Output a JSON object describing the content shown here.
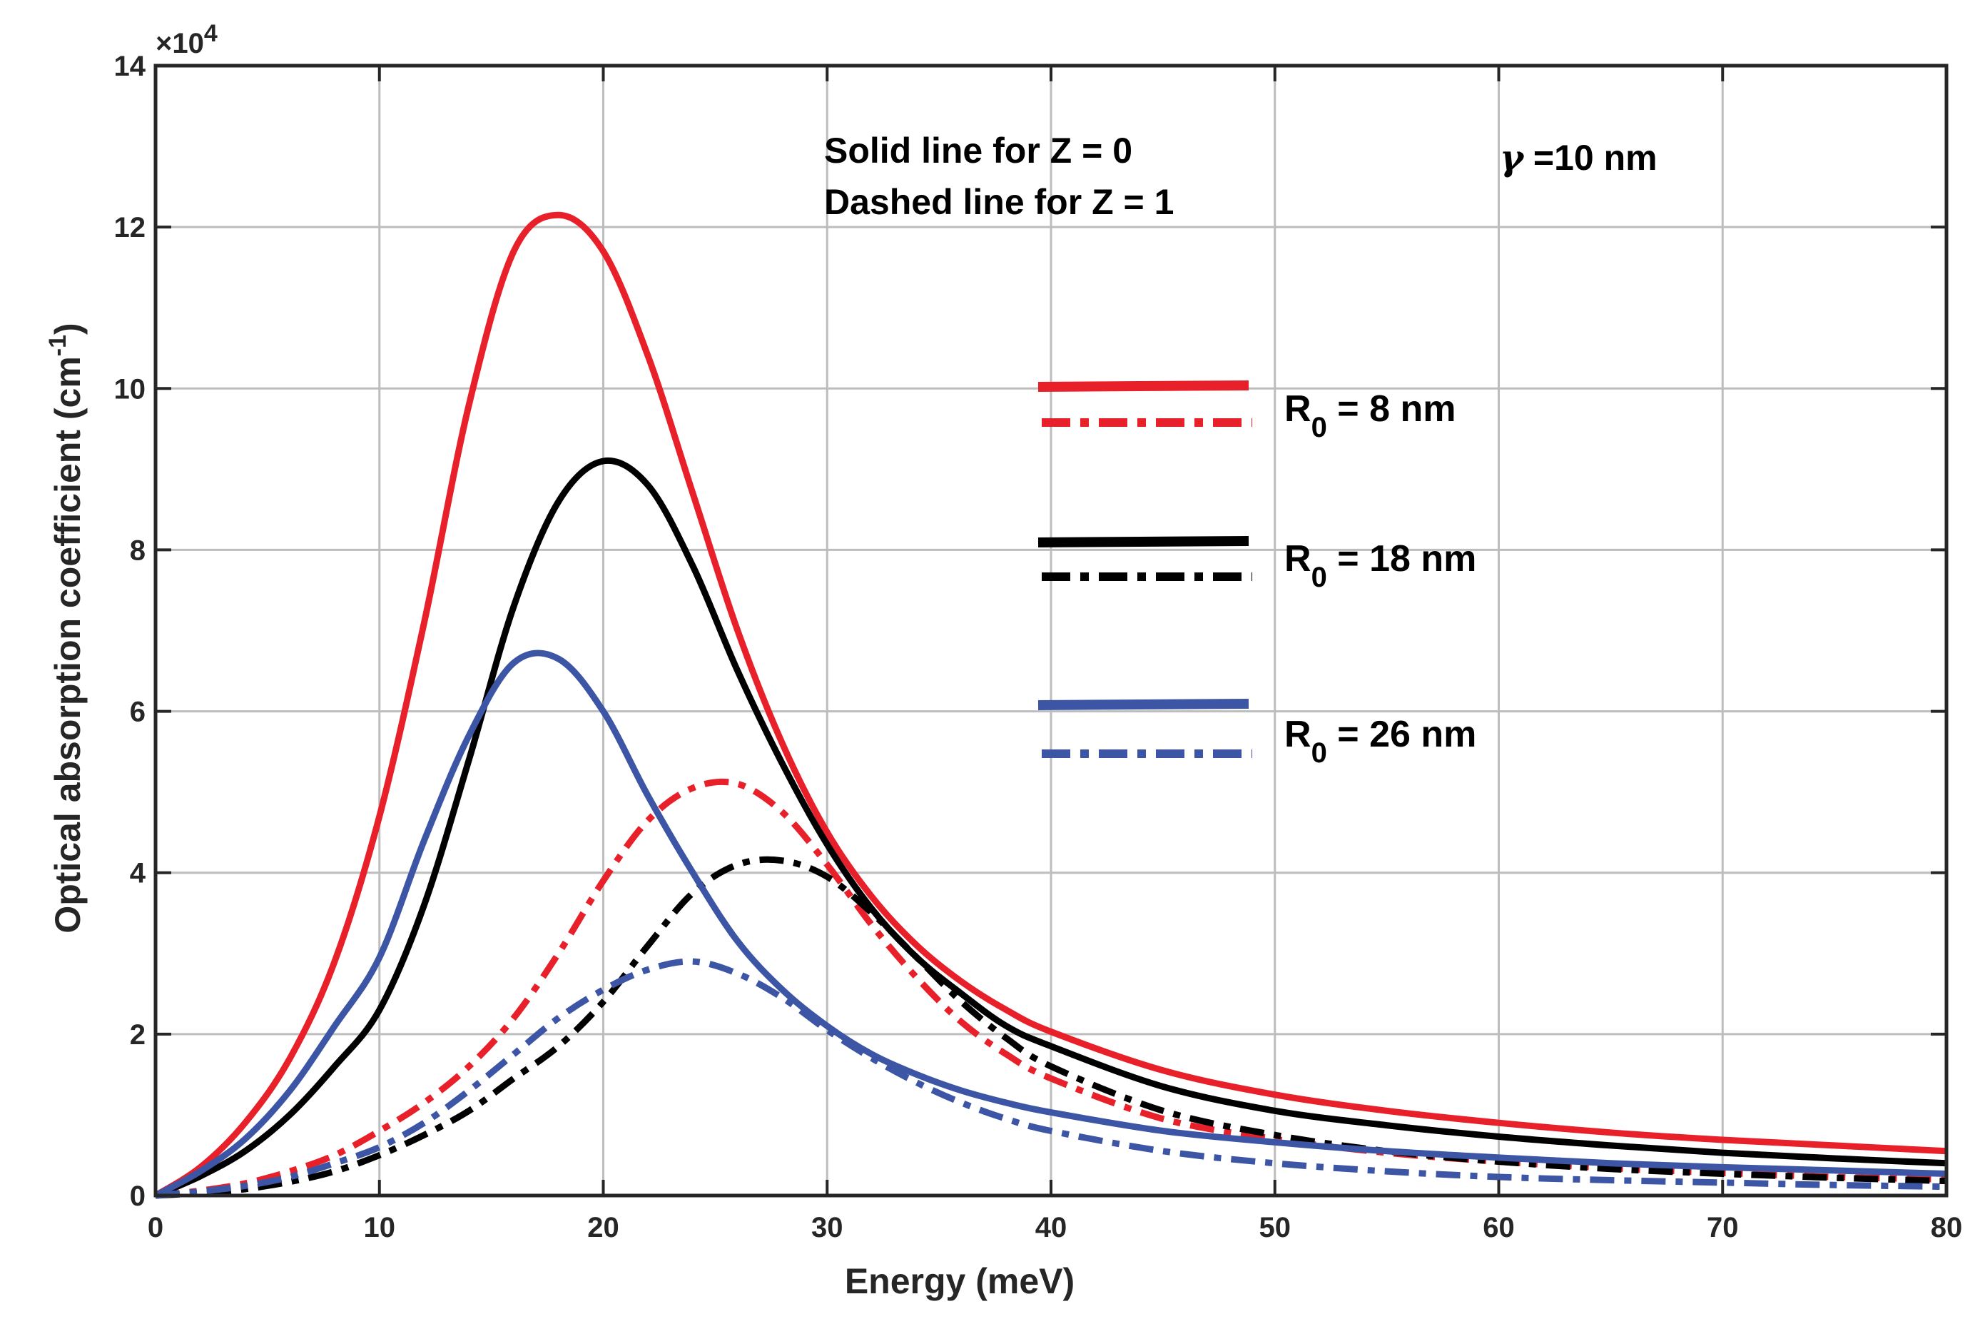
{
  "chart_data": {
    "type": "line",
    "title": "",
    "xlabel": "Energy (meV)",
    "ylabel": "Optical absorption coefficient (cm",
    "ylabel_sup": "-1",
    "ylabel_close": ")",
    "xlim": [
      0,
      80
    ],
    "ylim": [
      0,
      140000
    ],
    "grid": true,
    "x_ticks": [
      0,
      10,
      20,
      30,
      40,
      50,
      60,
      70,
      80
    ],
    "y_ticks": [
      0,
      2,
      4,
      6,
      8,
      10,
      12,
      14
    ],
    "y_multiplier_base": "×10",
    "y_multiplier_exp": "4",
    "annotations": {
      "line1": "Solid line for Z = 0",
      "line2": "Dashed line for Z = 1",
      "gamma_symbol": "γ",
      "gamma_value": " =10 nm"
    },
    "legend_groups": [
      {
        "label_prefix": "R",
        "label_sub": "0",
        "label_suffix": " = 8 nm",
        "color": "#e8202a"
      },
      {
        "label_prefix": "R",
        "label_sub": "0",
        "label_suffix": " = 18 nm",
        "color": "#000000"
      },
      {
        "label_prefix": "R",
        "label_sub": "0",
        "label_suffix": " = 26 nm",
        "color": "#3c55a5"
      }
    ],
    "x": [
      0,
      2,
      4,
      6,
      8,
      10,
      12,
      14,
      16,
      18,
      20,
      22,
      24,
      26,
      28,
      30,
      32,
      34,
      36,
      38,
      40,
      45,
      50,
      55,
      60,
      65,
      70,
      75,
      80
    ],
    "series": [
      {
        "name": "R0 = 8 nm, Z = 0",
        "color": "#e8202a",
        "style": "solid",
        "values": [
          0,
          3500,
          9000,
          17000,
          29000,
          47000,
          71000,
          98000,
          117000,
          121500,
          117000,
          104000,
          87000,
          70000,
          56000,
          45000,
          37000,
          31000,
          26500,
          23000,
          20300,
          15500,
          12500,
          10500,
          9000,
          7800,
          6900,
          6200,
          5500
        ]
      },
      {
        "name": "R0 = 8 nm, Z = 1",
        "color": "#e8202a",
        "style": "dashed",
        "values": [
          0,
          600,
          1500,
          3000,
          5000,
          8000,
          11500,
          16000,
          22000,
          30000,
          39000,
          46500,
          50500,
          51000,
          47500,
          41000,
          33500,
          27000,
          21500,
          17500,
          14500,
          9500,
          7000,
          5300,
          4200,
          3400,
          2800,
          2300,
          2000
        ]
      },
      {
        "name": "R0 = 18 nm, Z = 0",
        "color": "#000000",
        "style": "solid",
        "values": [
          0,
          2400,
          5500,
          10000,
          16000,
          23000,
          36000,
          54000,
          73000,
          86000,
          91000,
          88000,
          78000,
          65000,
          53500,
          43500,
          35500,
          29500,
          25000,
          21000,
          18500,
          13500,
          10500,
          8700,
          7300,
          6200,
          5300,
          4600,
          4000
        ]
      },
      {
        "name": "R0 = 18 nm, Z = 1",
        "color": "#000000",
        "style": "dashed",
        "values": [
          0,
          300,
          800,
          1700,
          3000,
          5000,
          7500,
          10500,
          14500,
          18500,
          24000,
          31000,
          37500,
          41000,
          41500,
          39500,
          35000,
          29500,
          24000,
          19500,
          16000,
          10500,
          7500,
          5500,
          4200,
          3300,
          2700,
          2200,
          1800
        ]
      },
      {
        "name": "R0 = 26 nm, Z = 0",
        "color": "#3c55a5",
        "style": "solid",
        "values": [
          0,
          3000,
          7000,
          13000,
          21000,
          29500,
          44000,
          57000,
          66000,
          66500,
          60000,
          49500,
          40000,
          31500,
          25500,
          21000,
          17500,
          15000,
          13000,
          11500,
          10300,
          8000,
          6600,
          5500,
          4700,
          4000,
          3500,
          3100,
          2700
        ]
      },
      {
        "name": "R0 = 26 nm, Z = 1",
        "color": "#3c55a5",
        "style": "dashed",
        "values": [
          0,
          500,
          1200,
          2300,
          4000,
          6000,
          9000,
          13000,
          17500,
          22000,
          25500,
          28000,
          29000,
          27500,
          24500,
          20500,
          17000,
          14000,
          11500,
          9500,
          8000,
          5500,
          4000,
          3000,
          2300,
          1900,
          1600,
          1300,
          1100
        ]
      }
    ]
  }
}
